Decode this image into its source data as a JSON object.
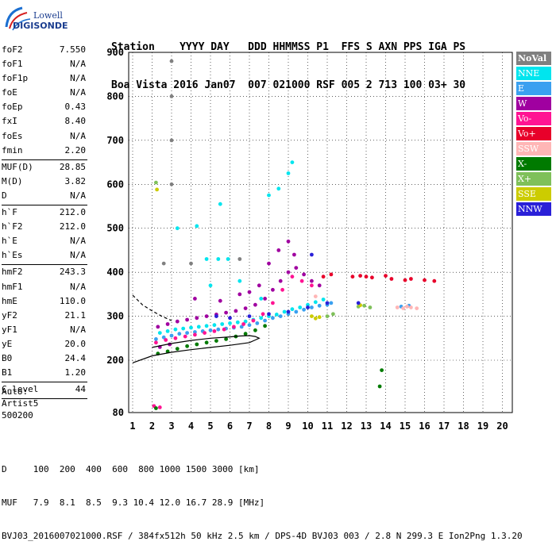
{
  "logo": {
    "line1": "Lowell",
    "line2": "DIGISONDE"
  },
  "header": {
    "labels": "Station    YYYY DAY   DDD HHMMSS P1  FFS S AXN PPS IGA PS",
    "values": "Boa Vista 2016 Jan07  007 021000 RSF 005 2 713 100 03+ 30"
  },
  "params_groups": [
    [
      {
        "n": "foF2",
        "v": "7.550"
      },
      {
        "n": "foF1",
        "v": "N/A"
      },
      {
        "n": "foF1p",
        "v": "N/A"
      },
      {
        "n": "foE",
        "v": "N/A"
      },
      {
        "n": "foEp",
        "v": "0.43"
      },
      {
        "n": "fxI",
        "v": "8.40"
      },
      {
        "n": "foEs",
        "v": "N/A"
      },
      {
        "n": "fmin",
        "v": "2.20"
      }
    ],
    [
      {
        "n": "MUF(D)",
        "v": "28.85"
      },
      {
        "n": "M(D)",
        "v": "3.82"
      },
      {
        "n": "D",
        "v": "N/A"
      }
    ],
    [
      {
        "n": "h`F",
        "v": "212.0"
      },
      {
        "n": "h`F2",
        "v": "212.0"
      },
      {
        "n": "h`E",
        "v": "N/A"
      },
      {
        "n": "h`Es",
        "v": "N/A"
      }
    ],
    [
      {
        "n": "hmF2",
        "v": "243.3"
      },
      {
        "n": "hmF1",
        "v": "N/A"
      },
      {
        "n": "hmE",
        "v": "110.0"
      },
      {
        "n": "yF2",
        "v": "21.1"
      },
      {
        "n": "yF1",
        "v": "N/A"
      },
      {
        "n": "yE",
        "v": "20.0"
      },
      {
        "n": "B0",
        "v": "24.4"
      },
      {
        "n": "B1",
        "v": "1.20"
      }
    ],
    [
      {
        "n": "C-level",
        "v": "44"
      }
    ]
  ],
  "auto": [
    "Auto:",
    "Artist5",
    "500200"
  ],
  "footer": {
    "line1": "D     100  200  400  600  800 1000 1500 3000 [km]",
    "line2": "MUF   7.9  8.1  8.5  9.3 10.4 12.0 16.7 28.9 [MHz]",
    "line3": "BVJ03_2016007021000.RSF / 384fx512h 50 kHz 2.5 km / DPS-4D BVJ03 003 / 2.8 N 299.3 E Ion2Png 1.3.20"
  },
  "legend": [
    {
      "name": "NoVal",
      "color": "#808080"
    },
    {
      "name": "NNE",
      "color": "#00e5ee"
    },
    {
      "name": "E",
      "color": "#3aa0f0"
    },
    {
      "name": "W",
      "color": "#a000a0"
    },
    {
      "name": "Vo-",
      "color": "#ff1493"
    },
    {
      "name": "Vo+",
      "color": "#e8002a"
    },
    {
      "name": "SSW",
      "color": "#ffb6b6"
    },
    {
      "name": "X-",
      "color": "#007a00"
    },
    {
      "name": "X+",
      "color": "#7fc05a"
    },
    {
      "name": "SSE",
      "color": "#cccc00"
    },
    {
      "name": "NNW",
      "color": "#2a20d8"
    }
  ],
  "chart_data": {
    "type": "scatter",
    "title": "",
    "xlabel": "",
    "ylabel": "",
    "xlim": [
      1,
      20
    ],
    "ylim": [
      80,
      900
    ],
    "x_ticks": [
      1,
      2,
      3,
      4,
      5,
      6,
      7,
      8,
      9,
      10,
      11,
      12,
      13,
      14,
      15,
      16,
      17,
      18,
      19,
      20
    ],
    "y_ticks": [
      80,
      200,
      300,
      400,
      500,
      600,
      700,
      800,
      900
    ],
    "grid": true,
    "legend_position": "right",
    "series": [
      {
        "name": "E",
        "color": "#3aa0f0",
        "points": [
          [
            2.2,
            248
          ],
          [
            2.6,
            252
          ],
          [
            3.0,
            256
          ],
          [
            3.4,
            260
          ],
          [
            3.8,
            262
          ],
          [
            4.2,
            264
          ],
          [
            4.6,
            266
          ],
          [
            5.0,
            268
          ],
          [
            5.4,
            270
          ],
          [
            5.8,
            272
          ],
          [
            6.2,
            274
          ],
          [
            6.6,
            276
          ],
          [
            7.0,
            280
          ],
          [
            7.4,
            284
          ],
          [
            7.8,
            290
          ],
          [
            8.2,
            296
          ],
          [
            8.6,
            300
          ],
          [
            9.0,
            305
          ],
          [
            9.4,
            310
          ],
          [
            9.8,
            315
          ],
          [
            10.2,
            320
          ],
          [
            10.6,
            324
          ],
          [
            11.0,
            326
          ],
          [
            11.2,
            330
          ],
          [
            14.8,
            322
          ],
          [
            15.2,
            324
          ]
        ]
      },
      {
        "name": "NNE",
        "color": "#00e5ee",
        "points": [
          [
            2.4,
            262
          ],
          [
            2.8,
            266
          ],
          [
            3.2,
            270
          ],
          [
            3.6,
            272
          ],
          [
            4.0,
            274
          ],
          [
            4.4,
            276
          ],
          [
            4.8,
            278
          ],
          [
            5.2,
            280
          ],
          [
            5.6,
            282
          ],
          [
            6.0,
            284
          ],
          [
            6.4,
            286
          ],
          [
            6.8,
            288
          ],
          [
            7.2,
            292
          ],
          [
            7.6,
            296
          ],
          [
            8.0,
            300
          ],
          [
            8.4,
            304
          ],
          [
            8.8,
            310
          ],
          [
            9.2,
            316
          ],
          [
            9.6,
            320
          ],
          [
            10.0,
            326
          ],
          [
            10.4,
            332
          ],
          [
            10.8,
            338
          ],
          [
            3.3,
            500
          ],
          [
            4.3,
            505
          ],
          [
            4.8,
            430
          ],
          [
            5.4,
            430
          ],
          [
            5.9,
            430
          ],
          [
            8.0,
            575
          ],
          [
            8.5,
            590
          ],
          [
            9.0,
            625
          ],
          [
            9.2,
            650
          ],
          [
            5.5,
            555
          ],
          [
            5.0,
            370
          ],
          [
            6.5,
            380
          ],
          [
            7.6,
            340
          ]
        ]
      },
      {
        "name": "W",
        "color": "#a000a0",
        "points": [
          [
            2.3,
            276
          ],
          [
            2.8,
            282
          ],
          [
            3.3,
            288
          ],
          [
            3.8,
            292
          ],
          [
            4.3,
            296
          ],
          [
            4.8,
            300
          ],
          [
            5.3,
            304
          ],
          [
            5.8,
            308
          ],
          [
            6.3,
            312
          ],
          [
            6.8,
            318
          ],
          [
            7.3,
            326
          ],
          [
            7.8,
            340
          ],
          [
            8.2,
            360
          ],
          [
            8.6,
            380
          ],
          [
            9.0,
            400
          ],
          [
            9.4,
            410
          ],
          [
            9.8,
            395
          ],
          [
            10.2,
            380
          ],
          [
            10.6,
            370
          ],
          [
            6.5,
            350
          ],
          [
            7.0,
            355
          ],
          [
            7.5,
            370
          ],
          [
            8.0,
            420
          ],
          [
            8.5,
            450
          ],
          [
            9.0,
            470
          ],
          [
            9.3,
            440
          ],
          [
            4.2,
            340
          ],
          [
            5.5,
            335
          ],
          [
            2.4,
            230
          ],
          [
            2.9,
            236
          ]
        ]
      },
      {
        "name": "Vo-",
        "color": "#ff1493",
        "points": [
          [
            2.2,
            240
          ],
          [
            2.7,
            246
          ],
          [
            3.2,
            250
          ],
          [
            3.7,
            254
          ],
          [
            4.2,
            258
          ],
          [
            4.7,
            262
          ],
          [
            5.2,
            266
          ],
          [
            5.7,
            270
          ],
          [
            6.2,
            276
          ],
          [
            6.7,
            282
          ],
          [
            7.2,
            290
          ],
          [
            7.7,
            305
          ],
          [
            8.2,
            330
          ],
          [
            8.7,
            360
          ],
          [
            9.2,
            390
          ],
          [
            9.7,
            380
          ],
          [
            10.2,
            370
          ],
          [
            2.1,
            95
          ],
          [
            2.4,
            92
          ]
        ]
      },
      {
        "name": "Vo+",
        "color": "#e8002a",
        "points": [
          [
            12.3,
            390
          ],
          [
            12.7,
            392
          ],
          [
            13.0,
            390
          ],
          [
            13.3,
            388
          ],
          [
            14.0,
            392
          ],
          [
            14.3,
            385
          ],
          [
            15.0,
            382
          ],
          [
            15.3,
            385
          ],
          [
            16.0,
            382
          ],
          [
            16.5,
            380
          ],
          [
            10.8,
            390
          ],
          [
            11.2,
            395
          ]
        ]
      },
      {
        "name": "SSW",
        "color": "#ffb6b6",
        "points": [
          [
            14.9,
            318
          ],
          [
            15.1,
            322
          ],
          [
            15.3,
            320
          ],
          [
            15.6,
            318
          ],
          [
            14.6,
            320
          ],
          [
            10.4,
            345
          ]
        ]
      },
      {
        "name": "X-",
        "color": "#007a00",
        "points": [
          [
            2.3,
            215
          ],
          [
            2.8,
            220
          ],
          [
            3.3,
            226
          ],
          [
            3.8,
            232
          ],
          [
            4.3,
            236
          ],
          [
            4.8,
            240
          ],
          [
            5.3,
            244
          ],
          [
            5.8,
            248
          ],
          [
            6.3,
            254
          ],
          [
            6.8,
            260
          ],
          [
            7.3,
            268
          ],
          [
            7.8,
            278
          ],
          [
            13.7,
            140
          ],
          [
            13.8,
            177
          ],
          [
            2.2,
            90
          ]
        ]
      },
      {
        "name": "X+",
        "color": "#7fc05a",
        "points": [
          [
            11.0,
            300
          ],
          [
            11.3,
            305
          ],
          [
            12.6,
            322
          ],
          [
            12.9,
            324
          ],
          [
            2.2,
            604
          ],
          [
            13.2,
            320
          ]
        ]
      },
      {
        "name": "SSE",
        "color": "#cccc00",
        "points": [
          [
            10.2,
            300
          ],
          [
            10.4,
            295
          ],
          [
            10.6,
            298
          ],
          [
            2.25,
            588
          ],
          [
            12.7,
            325
          ]
        ]
      },
      {
        "name": "NNW",
        "color": "#2a20d8",
        "points": [
          [
            5.3,
            300
          ],
          [
            6.0,
            296
          ],
          [
            7.0,
            300
          ],
          [
            8.0,
            305
          ],
          [
            9.0,
            310
          ],
          [
            10.0,
            320
          ],
          [
            11.0,
            330
          ],
          [
            10.2,
            440
          ],
          [
            12.6,
            330
          ]
        ]
      },
      {
        "name": "NoVal",
        "color": "#808080",
        "points": [
          [
            2.6,
            420
          ],
          [
            3.0,
            600
          ],
          [
            3.0,
            700
          ],
          [
            3.0,
            800
          ],
          [
            3.0,
            880
          ],
          [
            4.0,
            420
          ],
          [
            6.5,
            430
          ]
        ]
      }
    ],
    "profile_solid": [
      [
        1,
        194
      ],
      [
        2,
        210
      ],
      [
        3,
        218
      ],
      [
        4,
        224
      ],
      [
        5,
        229
      ],
      [
        6,
        234
      ],
      [
        7,
        240
      ],
      [
        7.3,
        246
      ],
      [
        7.5,
        250
      ],
      [
        7.3,
        254
      ],
      [
        7,
        256
      ],
      [
        6.5,
        255
      ],
      [
        6,
        253
      ],
      [
        5,
        250
      ],
      [
        4,
        245
      ],
      [
        3,
        238
      ],
      [
        2,
        229
      ]
    ],
    "profile_dashed": [
      [
        1,
        348
      ],
      [
        1.5,
        326
      ],
      [
        2,
        312
      ],
      [
        2.5,
        300
      ],
      [
        3,
        290
      ]
    ]
  }
}
